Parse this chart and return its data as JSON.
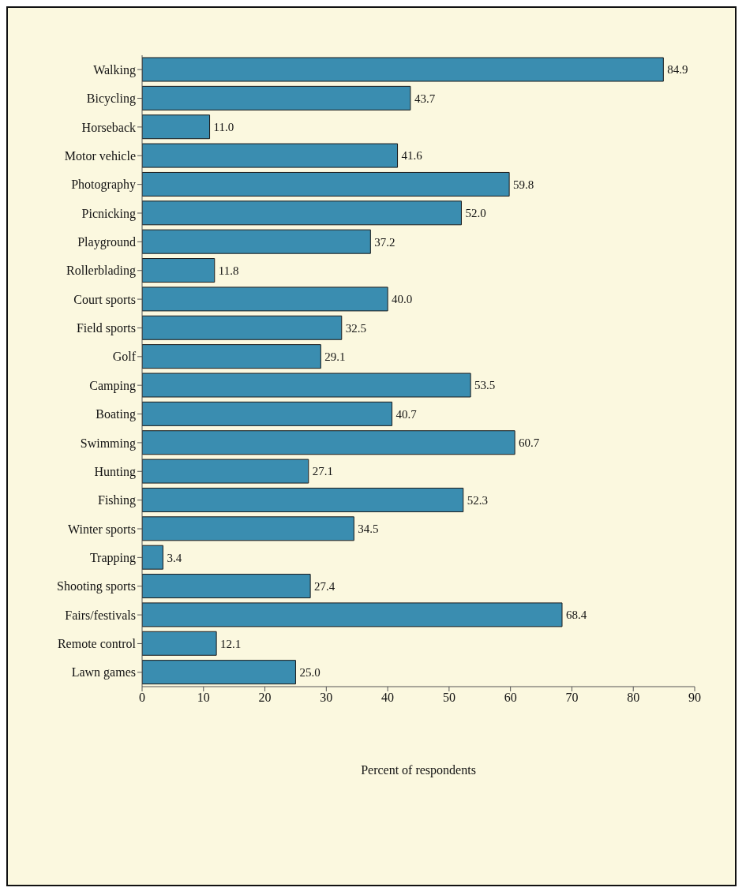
{
  "chart_data": {
    "type": "bar",
    "orientation": "horizontal",
    "xlabel": "Percent of respondents",
    "categories": [
      "Walking",
      "Bicycling",
      "Horseback",
      "Motor vehicle",
      "Photography",
      "Picnicking",
      "Playground",
      "Rollerblading",
      "Court sports",
      "Field sports",
      "Golf",
      "Camping",
      "Boating",
      "Swimming",
      "Hunting",
      "Fishing",
      "Winter sports",
      "Trapping",
      "Shooting sports",
      "Fairs/festivals",
      "Remote control",
      "Lawn games"
    ],
    "values": [
      84.9,
      43.7,
      11.0,
      41.6,
      59.8,
      52.0,
      37.2,
      11.8,
      40.0,
      32.5,
      29.1,
      53.5,
      40.7,
      60.7,
      27.1,
      52.3,
      34.5,
      3.4,
      27.4,
      68.4,
      12.1,
      25.0
    ],
    "value_labels": [
      "84.9",
      "43.7",
      "11.0",
      "41.6",
      "59.8",
      "52.0",
      "37.2",
      "11.8",
      "40.0",
      "32.5",
      "29.1",
      "53.5",
      "40.7",
      "60.7",
      "27.1",
      "52.3",
      "34.5",
      "3.4",
      "27.4",
      "68.4",
      "12.1",
      "25.0"
    ],
    "color": "#3a8db0",
    "xlim": [
      0,
      90
    ],
    "xticks": [
      0,
      10,
      20,
      30,
      40,
      50,
      60,
      70,
      80,
      90
    ],
    "grid": false,
    "legend": false
  }
}
